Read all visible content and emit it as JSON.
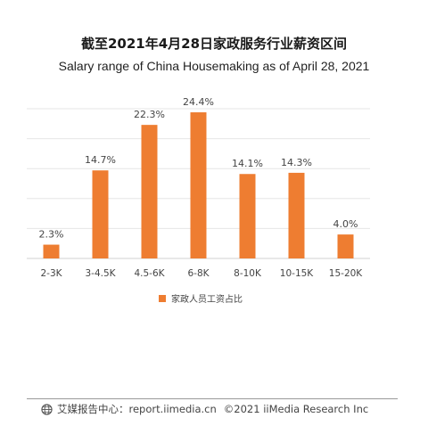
{
  "title_cn": "截至2021年4月28日家政服务行业薪资区间",
  "title_en": "Salary range of  China Housemaking as of April 28, 2021",
  "chart_data": {
    "type": "bar",
    "categories": [
      "2-3K",
      "3-4.5K",
      "4.5-6K",
      "6-8K",
      "8-10K",
      "10-15K",
      "15-20K"
    ],
    "series": [
      {
        "name": "家政人员工资占比",
        "values": [
          2.3,
          14.7,
          22.3,
          24.4,
          14.1,
          14.3,
          4.0
        ]
      }
    ],
    "data_labels": [
      "2.3%",
      "14.7%",
      "22.3%",
      "24.4%",
      "14.1%",
      "14.3%",
      "4.0%"
    ],
    "ylim": [
      0,
      25
    ],
    "grid": true,
    "legend_position": "bottom",
    "bar_color": "#ee7d31"
  },
  "footer": {
    "icon": "globe-icon",
    "source": "艾媒报告中心：report.iimedia.cn",
    "copyright": "©2021  iiMedia Research  Inc"
  }
}
